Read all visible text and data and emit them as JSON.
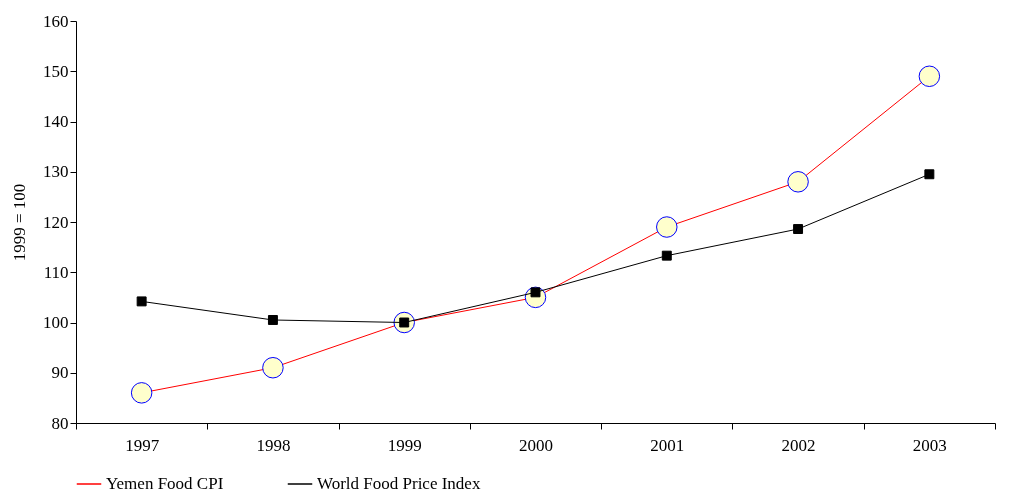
{
  "chart_data": {
    "type": "line",
    "ylabel": "1999 = 100",
    "categories": [
      "1997",
      "1998",
      "1999",
      "2000",
      "2001",
      "2002",
      "2003"
    ],
    "series": [
      {
        "name": "Yemen Food CPI",
        "color": "#ff0000",
        "marker": "circle",
        "values": [
          86,
          91,
          100,
          105,
          119,
          128,
          149
        ]
      },
      {
        "name": "World Food Price Index",
        "color": "#000000",
        "marker": "square",
        "values": [
          104.2,
          100.5,
          100,
          106,
          113.3,
          118.6,
          129.5
        ]
      }
    ],
    "ylim": [
      80,
      160
    ],
    "yticks": [
      80,
      90,
      100,
      110,
      120,
      130,
      140,
      150,
      160
    ],
    "grid": false,
    "legend": "bottom"
  }
}
